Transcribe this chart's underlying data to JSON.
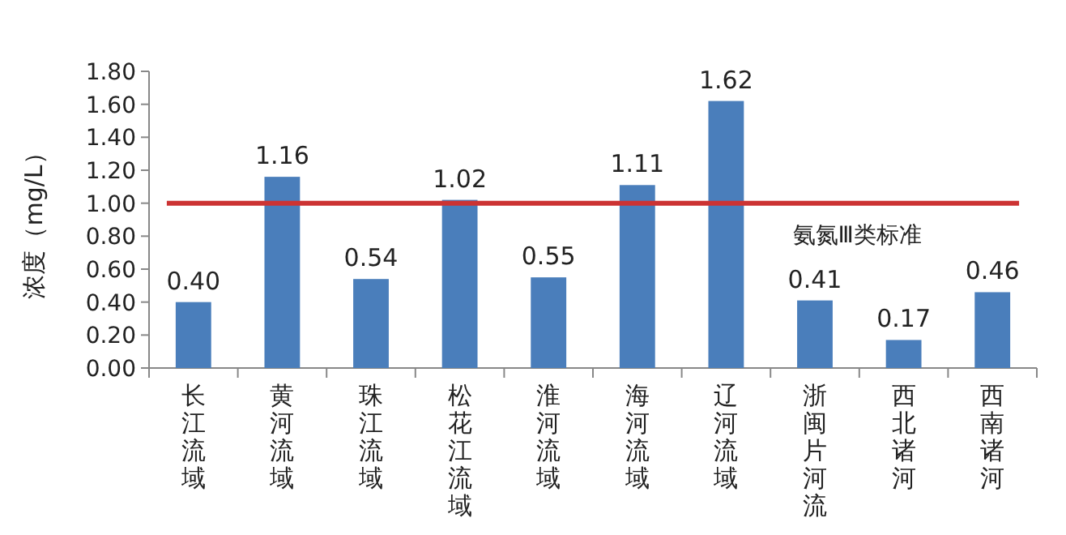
{
  "chart_data": {
    "type": "bar",
    "ylabel": "浓度（mg/L）",
    "categories": [
      "长江流域",
      "黄河流域",
      "珠江流域",
      "松花江流域",
      "淮河流域",
      "海河流域",
      "辽河流域",
      "浙闽片河流",
      "西北诸河",
      "西南诸河"
    ],
    "values": [
      0.4,
      1.16,
      0.54,
      1.02,
      0.55,
      1.11,
      1.62,
      0.41,
      0.17,
      0.46
    ],
    "value_labels": [
      "0.40",
      "1.16",
      "0.54",
      "1.02",
      "0.55",
      "1.11",
      "1.62",
      "0.41",
      "0.17",
      "0.46"
    ],
    "color": "#4a7ebb",
    "ylim": [
      0,
      1.8
    ],
    "yticks": [
      {
        "value": 0,
        "label": "0.00"
      },
      {
        "value": 0.2,
        "label": "0.20"
      },
      {
        "value": 0.4,
        "label": "0.40"
      },
      {
        "value": 0.6,
        "label": "0.60"
      },
      {
        "value": 0.8,
        "label": "0.80"
      },
      {
        "value": 1.0,
        "label": "1.00"
      },
      {
        "value": 1.2,
        "label": "1.20"
      },
      {
        "value": 1.4,
        "label": "1.40"
      },
      {
        "value": 1.6,
        "label": "1.60"
      },
      {
        "value": 1.8,
        "label": "1.80"
      }
    ],
    "ref_lines": [
      {
        "axis": "y",
        "value": 1.0,
        "label": "氨氮Ⅲ类标准",
        "color": "#cc3333"
      }
    ]
  }
}
